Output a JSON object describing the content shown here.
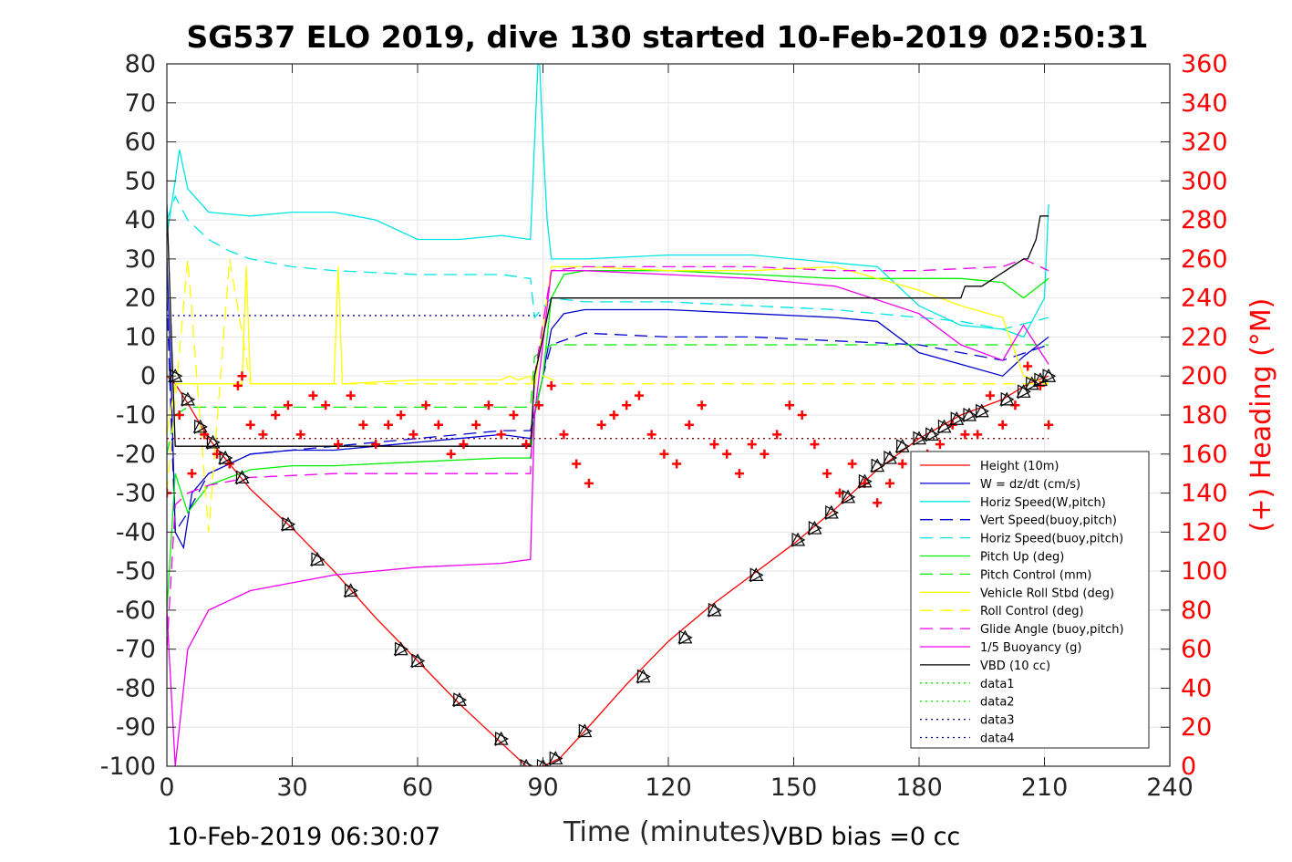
{
  "chart_data": {
    "type": "line",
    "title": "SG537 ELO 2019, dive 130 started 10-Feb-2019 02:50:31",
    "xlabel": "Time (minutes)",
    "ylabel": "",
    "ylabel_right": "(+) Heading (°M)",
    "xlim": [
      0,
      240
    ],
    "ylim": [
      -100,
      80
    ],
    "ylim_right": [
      0,
      360
    ],
    "xticks": [
      "0",
      "30",
      "60",
      "90",
      "120",
      "150",
      "180",
      "210",
      "240"
    ],
    "yticks": [
      "80",
      "70",
      "60",
      "50",
      "40",
      "30",
      "20",
      "10",
      "0",
      "-10",
      "-20",
      "-30",
      "-40",
      "-50",
      "-60",
      "-70",
      "-80",
      "-90",
      "-100"
    ],
    "yticks_right": [
      "360",
      "340",
      "320",
      "300",
      "280",
      "260",
      "240",
      "220",
      "200",
      "180",
      "160",
      "140",
      "120",
      "100",
      "80",
      "60",
      "40",
      "20",
      "0"
    ],
    "grid": true,
    "legend_position": "bottom-right",
    "footer_left": "10-Feb-2019 06:30:07",
    "footer_right": "VBD bias =0 cc",
    "series": [
      {
        "name": "Height (10m)",
        "color": "#ff0000",
        "style": "solid",
        "x": [
          0,
          2,
          5,
          10,
          20,
          30,
          40,
          50,
          60,
          70,
          80,
          86,
          90,
          94,
          100,
          110,
          120,
          130,
          140,
          150,
          160,
          170,
          180,
          190,
          200,
          206,
          211
        ],
        "y": [
          0,
          -2,
          -7,
          -16,
          -29,
          -39,
          -50,
          -62,
          -73,
          -84,
          -94,
          -100,
          -100,
          -98,
          -91,
          -79,
          -68,
          -59,
          -51,
          -43,
          -34,
          -24,
          -16,
          -10,
          -6,
          -2,
          0
        ]
      },
      {
        "name": "W = dz/dt (cm/s)",
        "color": "#0000cc",
        "style": "solid",
        "x": [
          0,
          1,
          2,
          4,
          6,
          10,
          20,
          30,
          40,
          50,
          60,
          70,
          80,
          87,
          88,
          90,
          92,
          95,
          100,
          120,
          140,
          160,
          170,
          180,
          190,
          200,
          205,
          211
        ],
        "y": [
          30,
          0,
          -40,
          -44,
          -30,
          -25,
          -20,
          -19,
          -19,
          -18,
          -17,
          -16,
          -15,
          -16,
          -10,
          0,
          12,
          16,
          17,
          17,
          16,
          15,
          14,
          6,
          3,
          0,
          5,
          10
        ]
      },
      {
        "name": "Horiz Speed(W,pitch)",
        "color": "#00e5e5",
        "style": "solid",
        "x": [
          0,
          2,
          3,
          5,
          10,
          20,
          30,
          40,
          50,
          60,
          70,
          80,
          87,
          88,
          89,
          90,
          91,
          92,
          100,
          120,
          140,
          160,
          170,
          180,
          190,
          200,
          205,
          210,
          211
        ],
        "y": [
          36,
          50,
          58,
          48,
          42,
          41,
          42,
          42,
          40,
          35,
          35,
          36,
          35,
          60,
          85,
          60,
          40,
          30,
          30,
          31,
          31,
          29,
          28,
          18,
          13,
          12,
          10,
          20,
          44
        ]
      },
      {
        "name": "Vert Speed(buoy,pitch)",
        "color": "#0000cc",
        "style": "dashed",
        "x": [
          0,
          2,
          5,
          10,
          20,
          40,
          60,
          80,
          87,
          90,
          92,
          100,
          120,
          140,
          160,
          180,
          190,
          200,
          211
        ],
        "y": [
          20,
          -40,
          -35,
          -25,
          -20,
          -18,
          -16,
          -14,
          -14,
          0,
          8,
          11,
          10,
          10,
          9,
          8,
          6,
          4,
          8
        ]
      },
      {
        "name": "Horiz Speed(buoy,pitch)",
        "color": "#00e5e5",
        "style": "dashed",
        "x": [
          0,
          2,
          5,
          10,
          15,
          20,
          30,
          40,
          60,
          80,
          87,
          88,
          92,
          100,
          120,
          140,
          160,
          180,
          190,
          200,
          211
        ],
        "y": [
          40,
          46,
          40,
          35,
          32,
          30,
          28,
          27,
          26,
          26,
          25,
          15,
          20,
          19,
          19,
          18,
          17,
          15,
          14,
          12,
          15
        ]
      },
      {
        "name": "Pitch Up (deg)",
        "color": "#00ee00",
        "style": "solid",
        "x": [
          0,
          2,
          5,
          10,
          20,
          30,
          40,
          60,
          80,
          87,
          88,
          90,
          92,
          95,
          100,
          120,
          140,
          160,
          180,
          190,
          200,
          205,
          211
        ],
        "y": [
          -60,
          -25,
          -35,
          -28,
          -24,
          -23,
          -23,
          -22,
          -21,
          -21,
          -10,
          0,
          20,
          26,
          27,
          27,
          26,
          25,
          25,
          25,
          24,
          20,
          25
        ]
      },
      {
        "name": "Pitch Control (mm)",
        "color": "#00ee00",
        "style": "dashed",
        "x": [
          0,
          2,
          5,
          10,
          20,
          40,
          60,
          80,
          87,
          88,
          92,
          100,
          120,
          140,
          160,
          180,
          200,
          211
        ],
        "y": [
          -20,
          -10,
          -8,
          -8,
          -8,
          -8,
          -8,
          -8,
          -8,
          5,
          8,
          8,
          8,
          8,
          8,
          8,
          8,
          8
        ]
      },
      {
        "name": "Vehicle Roll Stbd (deg)",
        "color": "#ffff00",
        "style": "solid",
        "x": [
          0,
          2,
          5,
          10,
          15,
          18,
          19,
          20,
          40,
          41,
          42,
          60,
          80,
          82,
          84,
          87,
          88,
          92,
          100,
          120,
          140,
          160,
          170,
          180,
          190,
          200,
          205,
          211
        ],
        "y": [
          -15,
          -2,
          -2,
          -2,
          -2,
          -2,
          28,
          -2,
          -2,
          28,
          -2,
          -1,
          -1,
          0,
          -1,
          0,
          -3,
          28,
          28,
          27,
          27,
          28,
          25,
          22,
          18,
          15,
          0,
          -2
        ]
      },
      {
        "name": "Roll Control (deg)",
        "color": "#ffff00",
        "style": "dashed",
        "x": [
          0,
          5,
          10,
          15,
          20,
          40,
          60,
          80,
          87,
          90,
          95,
          100,
          120,
          140,
          160,
          180,
          200,
          211
        ],
        "y": [
          -30,
          30,
          -40,
          30,
          -2,
          -2,
          -2,
          -2,
          -2,
          0,
          -2,
          -2,
          -2,
          -2,
          -2,
          -2,
          -2,
          -2
        ]
      },
      {
        "name": "Glide Angle (buoy,pitch)",
        "color": "#ee00ee",
        "style": "dashed",
        "x": [
          0,
          2,
          5,
          10,
          20,
          40,
          60,
          80,
          87,
          88,
          92,
          100,
          120,
          140,
          160,
          180,
          200,
          205,
          211
        ],
        "y": [
          -70,
          -33,
          -30,
          -28,
          -26,
          -25,
          -25,
          -25,
          -25,
          0,
          27,
          28,
          28,
          28,
          27,
          27,
          28,
          30,
          27
        ]
      },
      {
        "name": "1/5 Buoyancy (g)",
        "color": "#ee00ee",
        "style": "solid",
        "x": [
          0,
          2,
          3,
          5,
          10,
          20,
          30,
          40,
          60,
          80,
          87,
          88,
          92,
          100,
          120,
          140,
          160,
          180,
          190,
          200,
          205,
          211
        ],
        "y": [
          -60,
          -100,
          -90,
          -70,
          -60,
          -55,
          -53,
          -51,
          -49,
          -48,
          -47,
          -10,
          27,
          27,
          26,
          25,
          23,
          16,
          8,
          4,
          13,
          3
        ]
      },
      {
        "name": "VBD (10 cc)",
        "color": "#000000",
        "style": "solid",
        "x": [
          0,
          2,
          3,
          5,
          20,
          40,
          60,
          80,
          87,
          88,
          92,
          100,
          120,
          140,
          160,
          180,
          190,
          191,
          195,
          205,
          206,
          208,
          209,
          211
        ],
        "y": [
          44,
          -18,
          -18,
          -18,
          -18,
          -18,
          -18,
          -18,
          -18,
          0,
          20,
          20,
          20,
          20,
          20,
          20,
          20,
          23,
          23,
          30,
          30,
          35,
          41,
          41
        ]
      },
      {
        "name": "data1",
        "color": "#00ee00",
        "style": "dotted",
        "x": [],
        "y": []
      },
      {
        "name": "data2",
        "color": "#00ee00",
        "style": "dotted",
        "x": [],
        "y": []
      },
      {
        "name": "data3",
        "color": "#000080",
        "style": "dotted",
        "x": [],
        "y": []
      },
      {
        "name": "data4",
        "color": "#0000cc",
        "style": "dotted",
        "x": [],
        "y": []
      }
    ],
    "reference_lines": [
      {
        "color": "#0000cc",
        "style": "dotted",
        "y": 15.5,
        "x": [
          0,
          90
        ]
      },
      {
        "color": "#8b0000",
        "style": "dotted",
        "y": -16,
        "x": [
          0,
          211
        ]
      }
    ],
    "heading_series": {
      "color": "#ff0000",
      "marker": "+",
      "axis": "right",
      "x": [
        0,
        3,
        6,
        9,
        12,
        15,
        17,
        18,
        20,
        23,
        26,
        29,
        32,
        35,
        38,
        41,
        44,
        47,
        50,
        53,
        56,
        59,
        62,
        65,
        68,
        71,
        74,
        77,
        80,
        83,
        86,
        89,
        92,
        95,
        98,
        101,
        104,
        107,
        110,
        113,
        116,
        119,
        122,
        125,
        128,
        131,
        134,
        137,
        140,
        143,
        146,
        149,
        152,
        155,
        158,
        161,
        164,
        167,
        170,
        173,
        176,
        179,
        182,
        185,
        188,
        191,
        194,
        197,
        200,
        203,
        206,
        209,
        211
      ],
      "y": [
        140,
        180,
        150,
        170,
        160,
        155,
        195,
        200,
        175,
        170,
        180,
        185,
        170,
        190,
        185,
        165,
        190,
        175,
        165,
        175,
        180,
        170,
        185,
        175,
        160,
        165,
        175,
        185,
        170,
        180,
        165,
        185,
        195,
        170,
        155,
        145,
        175,
        180,
        185,
        190,
        170,
        160,
        155,
        175,
        185,
        165,
        160,
        150,
        165,
        160,
        170,
        185,
        180,
        165,
        150,
        140,
        155,
        145,
        135,
        145,
        155,
        150,
        160,
        165,
        175,
        170,
        170,
        190,
        175,
        185,
        205,
        195,
        175
      ]
    },
    "markers": {
      "color": "#000000",
      "description": "triangle markers along Height track",
      "x": [
        2,
        5,
        8,
        11,
        14,
        18,
        29,
        36,
        44,
        56,
        60,
        70,
        80,
        86,
        90,
        93,
        100,
        114,
        124,
        131,
        141,
        151,
        155,
        159,
        163,
        167,
        170,
        173,
        176,
        180,
        183,
        186,
        189,
        192,
        195,
        201,
        205,
        207,
        209,
        211
      ],
      "y": [
        0,
        -6,
        -13,
        -17,
        -21,
        -26,
        -38,
        -47,
        -55,
        -70,
        -73,
        -83,
        -93,
        -100,
        -100,
        -98,
        -91,
        -77,
        -67,
        -60,
        -51,
        -42,
        -39,
        -35,
        -31,
        -27,
        -23,
        -21,
        -18,
        -16,
        -15,
        -13,
        -11,
        -10,
        -9,
        -6,
        -4,
        -2,
        -1,
        0
      ]
    }
  }
}
